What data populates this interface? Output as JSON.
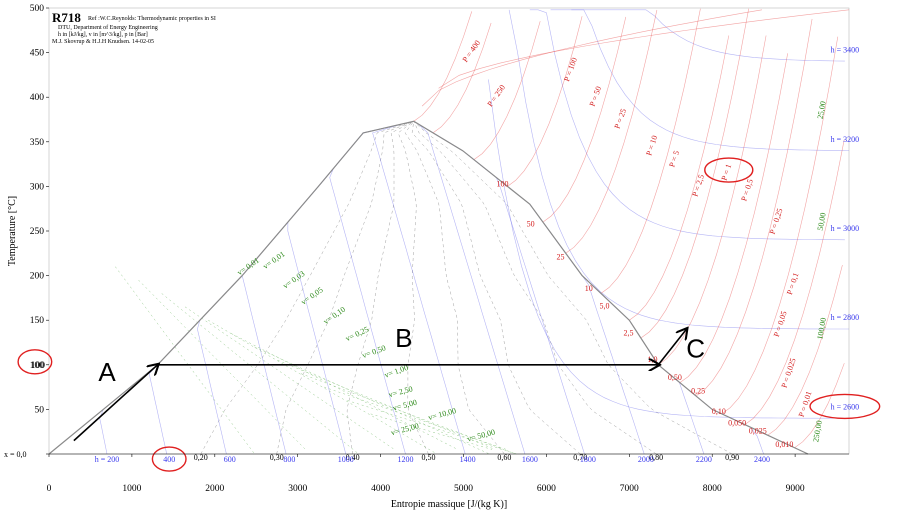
{
  "chart_data": {
    "type": "line",
    "title": "R718",
    "subtitle_lines": [
      "Ref :W.C.Reynolds: Thermodynamic properties in SI",
      "DTU, Department of Energy Engineering",
      "h in [kJ/kg], v in [m^3/kg], p in [Bar]",
      "M.J. Skovrup & H.J.H Knudsen. 14-02-05"
    ],
    "xlabel": "Entropie massique [J/(kg K)]",
    "ylabel": "Temperature [°C]",
    "xlim": [
      0,
      9650
    ],
    "ylim": [
      0,
      500
    ],
    "x_ticks": [
      0,
      1000,
      2000,
      3000,
      4000,
      5000,
      6000,
      7000,
      8000,
      9000
    ],
    "y_ticks": [
      0,
      50,
      100,
      150,
      200,
      250,
      300,
      350,
      400,
      450,
      500
    ],
    "y_zero_label": "x = 0,0",
    "quality_labels": [
      "0,20",
      "0,30",
      "0,40",
      "0,50",
      "0,60",
      "0,70",
      "0,80",
      "0,90"
    ],
    "quality_x": [
      0.2,
      0.3,
      0.4,
      0.5,
      0.6,
      0.7,
      0.8,
      0.9
    ],
    "saturation_dome": [
      {
        "s": 0,
        "T": 0
      },
      {
        "s": 1310,
        "T": 100
      },
      {
        "s": 2330,
        "T": 200
      },
      {
        "s": 3250,
        "T": 300
      },
      {
        "s": 3790,
        "T": 360
      },
      {
        "s": 4400,
        "T": 373
      },
      {
        "s": 4990,
        "T": 340
      },
      {
        "s": 5800,
        "T": 280
      },
      {
        "s": 6430,
        "T": 200
      },
      {
        "s": 7000,
        "T": 150
      },
      {
        "s": 7350,
        "T": 100
      },
      {
        "s": 8000,
        "T": 50
      },
      {
        "s": 9155,
        "T": 0
      }
    ],
    "h_labels": [
      {
        "text": "h = 200",
        "s": 700,
        "T": -9
      },
      {
        "text": "400",
        "s": 1450,
        "T": -9
      },
      {
        "text": "600",
        "s": 2180,
        "T": -9
      },
      {
        "text": "800",
        "s": 2900,
        "T": -9
      },
      {
        "text": "1000",
        "s": 3580,
        "T": -9
      },
      {
        "text": "1200",
        "s": 4300,
        "T": -9
      },
      {
        "text": "1400",
        "s": 5050,
        "T": -9
      },
      {
        "text": "1600",
        "s": 5800,
        "T": -9
      },
      {
        "text": "1800",
        "s": 6500,
        "T": -9
      },
      {
        "text": "2000",
        "s": 7200,
        "T": -9
      },
      {
        "text": "2200",
        "s": 7900,
        "T": -9
      },
      {
        "text": "2400",
        "s": 8600,
        "T": -9
      },
      {
        "text": "h = 2600",
        "s": 9600,
        "T": 50
      },
      {
        "text": "h = 2800",
        "s": 9600,
        "T": 150
      },
      {
        "text": "h = 3000",
        "s": 9600,
        "T": 250
      },
      {
        "text": "h = 3200",
        "s": 9600,
        "T": 350
      },
      {
        "text": "h = 3400",
        "s": 9600,
        "T": 450
      }
    ],
    "p_labels": [
      {
        "text": "P = 400",
        "s": 5120,
        "T": 450,
        "rot": -55
      },
      {
        "text": "P = 250",
        "s": 5420,
        "T": 400,
        "rot": -55
      },
      {
        "text": "P = 100",
        "s": 6320,
        "T": 430,
        "rot": -70
      },
      {
        "text": "P = 50",
        "s": 6620,
        "T": 400,
        "rot": -70
      },
      {
        "text": "P = 25",
        "s": 6920,
        "T": 375,
        "rot": -70
      },
      {
        "text": "P = 10",
        "s": 7300,
        "T": 345,
        "rot": -72
      },
      {
        "text": "P = 5",
        "s": 7570,
        "T": 330,
        "rot": -72
      },
      {
        "text": "P = 2,5",
        "s": 7860,
        "T": 300,
        "rot": -72
      },
      {
        "text": "P = 1",
        "s": 8200,
        "T": 315,
        "rot": -72
      },
      {
        "text": "P = 0,5",
        "s": 8450,
        "T": 295,
        "rot": -72
      },
      {
        "text": "P = 0,25",
        "s": 8800,
        "T": 260,
        "rot": -72
      },
      {
        "text": "P = 0,1",
        "s": 9000,
        "T": 190,
        "rot": -72
      },
      {
        "text": "P = 0,05",
        "s": 8850,
        "T": 145,
        "rot": -72
      },
      {
        "text": "P = 0,025",
        "s": 8950,
        "T": 90,
        "rot": -72
      },
      {
        "text": "P = 0,01",
        "s": 9150,
        "T": 55,
        "rot": -72
      },
      {
        "text": "100",
        "s": 5470,
        "T": 300,
        "rot": 0
      },
      {
        "text": "50",
        "s": 5810,
        "T": 255,
        "rot": 0
      },
      {
        "text": "25",
        "s": 6170,
        "T": 218,
        "rot": 0
      },
      {
        "text": "10",
        "s": 6510,
        "T": 183,
        "rot": 0
      },
      {
        "text": "5,0",
        "s": 6700,
        "T": 163,
        "rot": 0
      },
      {
        "text": "2,5",
        "s": 6990,
        "T": 133,
        "rot": 0
      },
      {
        "text": "1,0",
        "s": 7280,
        "T": 103,
        "rot": 0
      },
      {
        "text": "0,50",
        "s": 7550,
        "T": 83,
        "rot": 0
      },
      {
        "text": "0,25",
        "s": 7830,
        "T": 68,
        "rot": 0
      },
      {
        "text": "0,10",
        "s": 8080,
        "T": 45,
        "rot": 0
      },
      {
        "text": "0,050",
        "s": 8300,
        "T": 32,
        "rot": 0
      },
      {
        "text": "0,025",
        "s": 8550,
        "T": 23,
        "rot": 0
      },
      {
        "text": "0,010",
        "s": 8870,
        "T": 8,
        "rot": 0
      }
    ],
    "v_labels": [
      {
        "text": "v= 0,01",
        "s": 2420,
        "T": 208,
        "rot": -35
      },
      {
        "text": "v= 0,01",
        "s": 2730,
        "T": 215,
        "rot": -35
      },
      {
        "text": "v= 0,03",
        "s": 2970,
        "T": 193,
        "rot": -35
      },
      {
        "text": "v= 0,05",
        "s": 3190,
        "T": 175,
        "rot": -35
      },
      {
        "text": "v= 0,10",
        "s": 3460,
        "T": 153,
        "rot": -35
      },
      {
        "text": "v= 0,25",
        "s": 3730,
        "T": 132,
        "rot": -25
      },
      {
        "text": "v= 0,50",
        "s": 3930,
        "T": 112,
        "rot": -20
      },
      {
        "text": "v= 1,00",
        "s": 4200,
        "T": 90,
        "rot": -20
      },
      {
        "text": "v= 2,50",
        "s": 4250,
        "T": 67,
        "rot": -15
      },
      {
        "text": "v= 5,00",
        "s": 4300,
        "T": 52,
        "rot": -15
      },
      {
        "text": "v= 10,00",
        "s": 4750,
        "T": 42,
        "rot": -15
      },
      {
        "text": "v= 25,00",
        "s": 4300,
        "T": 25,
        "rot": -15
      },
      {
        "text": "v= 50,00",
        "s": 5220,
        "T": 18,
        "rot": -15
      },
      {
        "text": "250,00",
        "s": 9300,
        "T": 25,
        "rot": -80
      },
      {
        "text": "100,00",
        "s": 9350,
        "T": 140,
        "rot": -80
      },
      {
        "text": "50,00",
        "s": 9350,
        "T": 260,
        "rot": -80
      },
      {
        "text": "25,00",
        "s": 9350,
        "T": 385,
        "rot": -80
      }
    ],
    "process_path": [
      {
        "s": 300,
        "T": 15
      },
      {
        "s": 1310,
        "T": 100
      },
      {
        "s": 7350,
        "T": 100
      },
      {
        "s": 7690,
        "T": 140
      }
    ],
    "annotations": [
      {
        "text": "A",
        "s": 700,
        "T": 82
      },
      {
        "text": "B",
        "s": 4280,
        "T": 120
      },
      {
        "text": "C",
        "s": 7800,
        "T": 108
      }
    ],
    "highlight_circles": [
      {
        "label": "100",
        "s": -170,
        "T": 100
      },
      {
        "label": "400",
        "s": 1450,
        "T": -9
      },
      {
        "label": "P = 1",
        "s": 8200,
        "T": 315
      },
      {
        "label": "h = 2600",
        "s": 9600,
        "T": 50
      }
    ],
    "colors": {
      "pressure": "#e84a4a",
      "enthalpy": "#5a5ae8",
      "volume": "#3a9a2a",
      "quality": "#777777",
      "dome": "#8a8a8a",
      "highlight": "#e02020",
      "path": "#000000"
    }
  }
}
